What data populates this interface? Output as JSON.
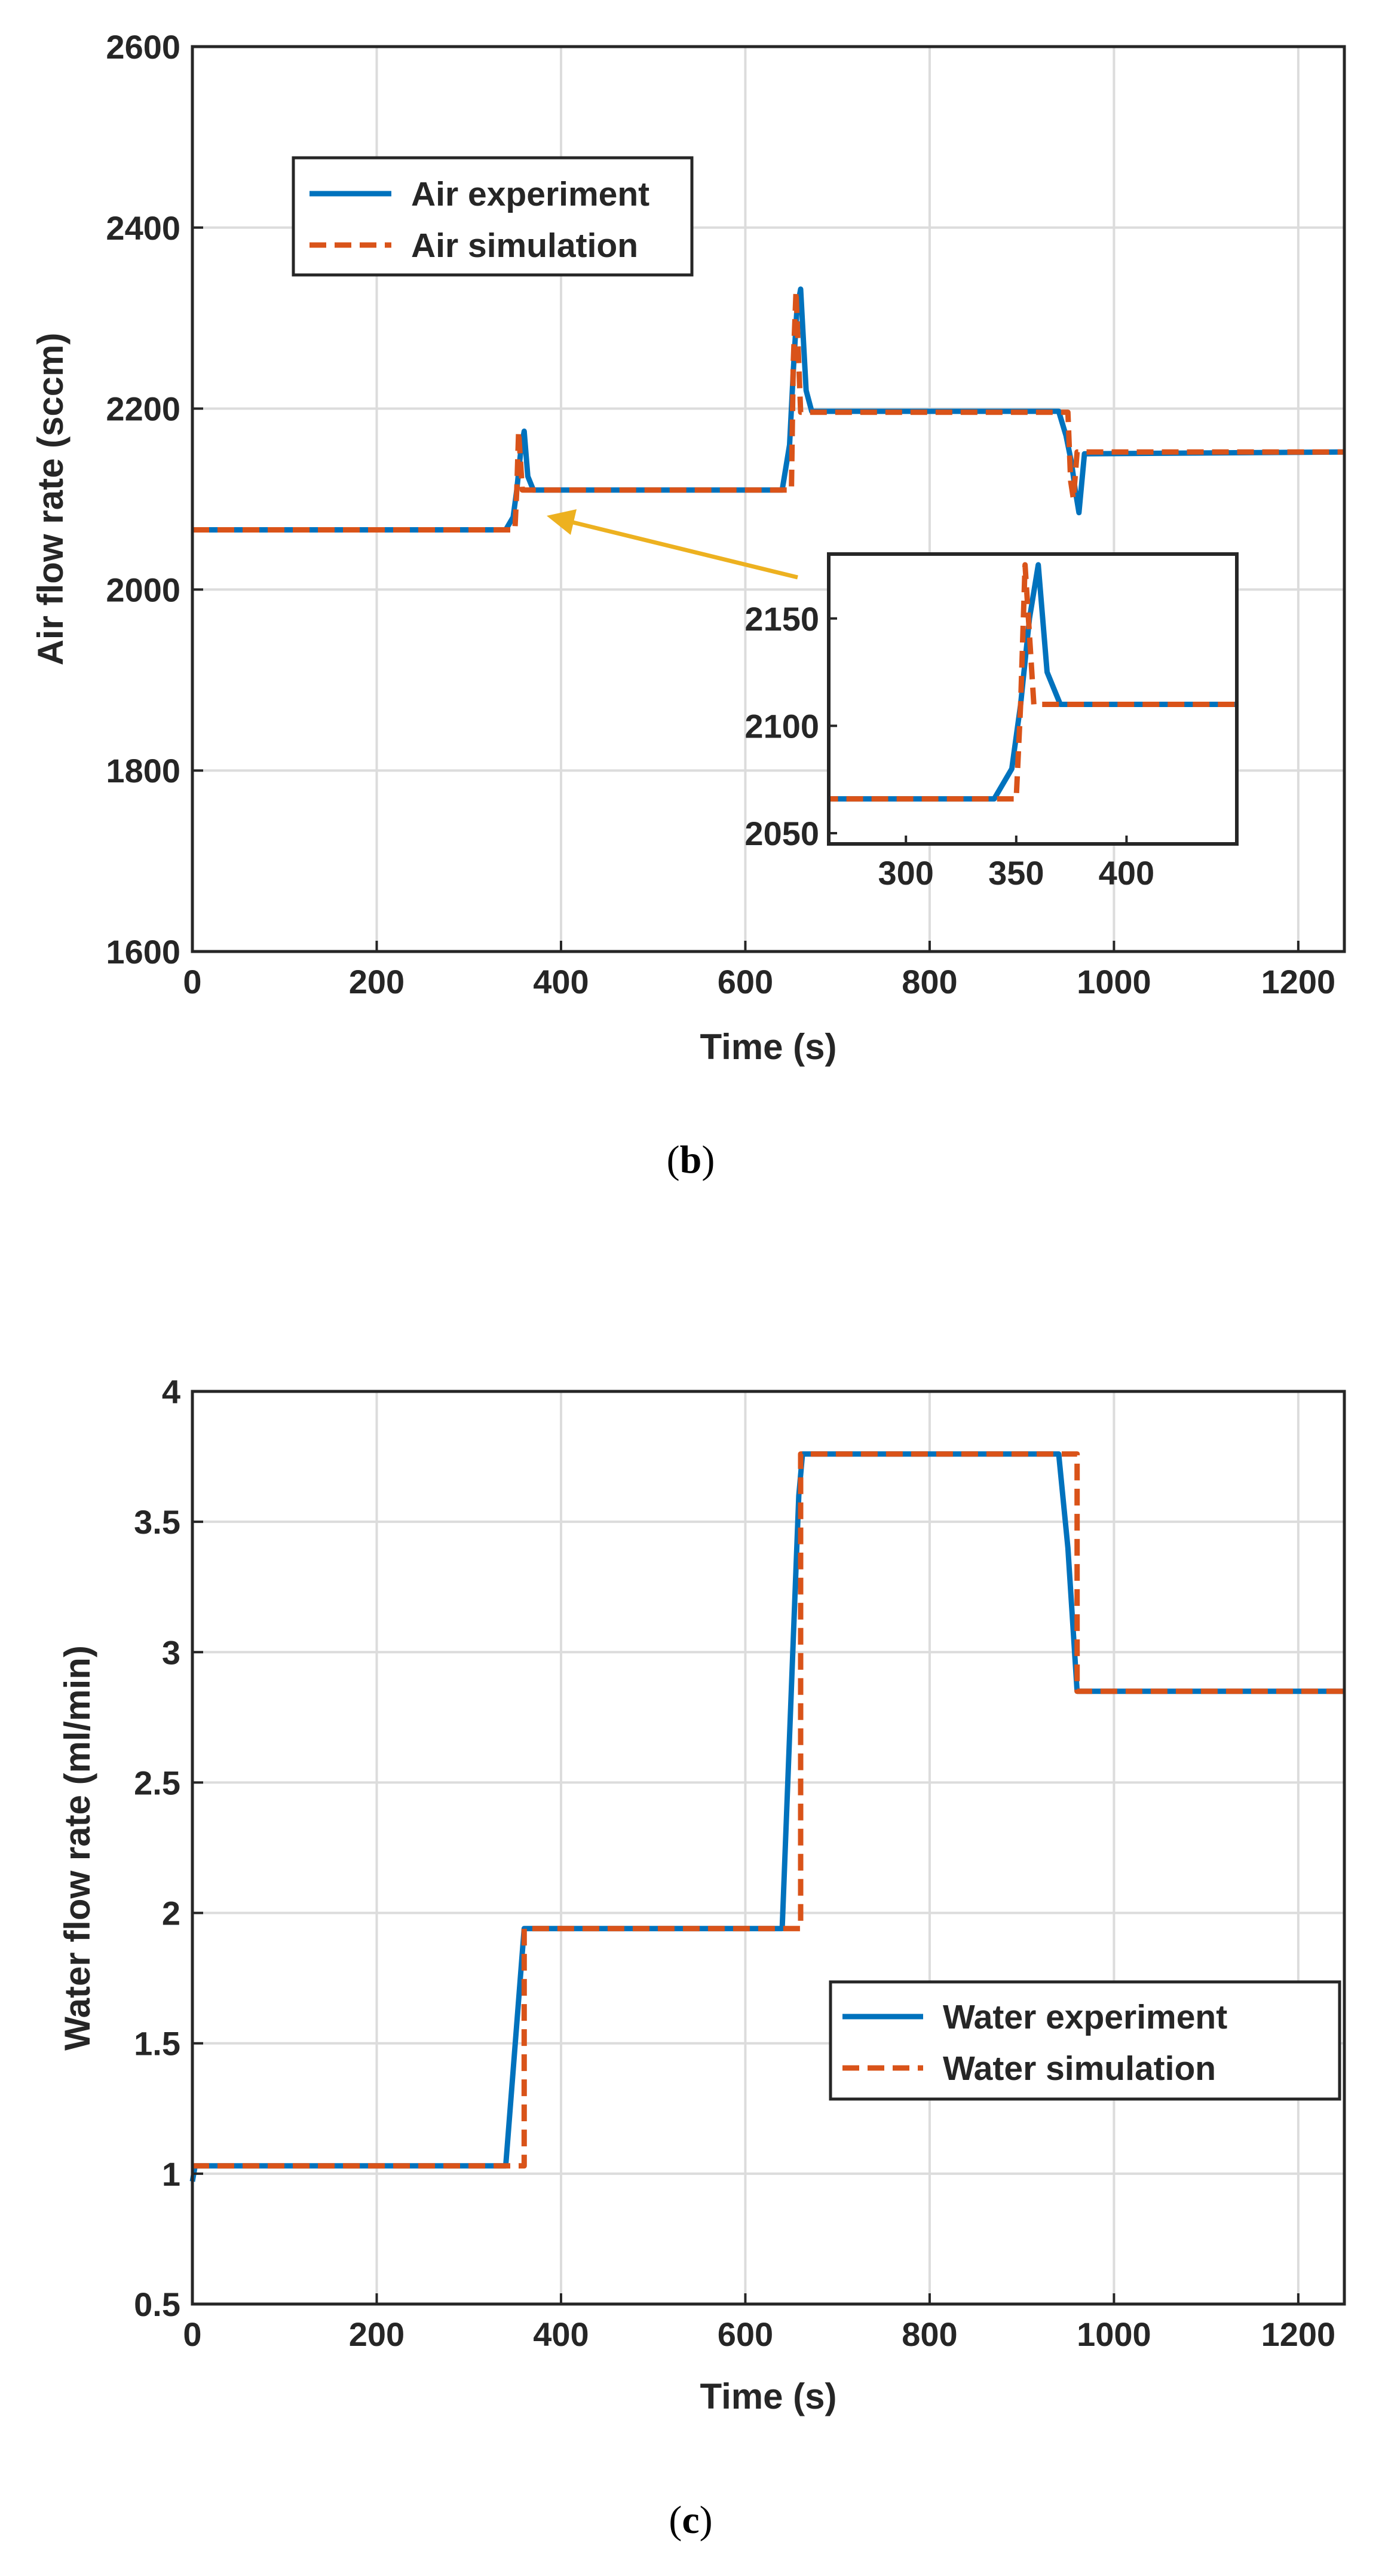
{
  "chart_data": [
    {
      "panel": "b",
      "type": "line",
      "caption": {
        "open": "(",
        "letter": "b",
        "close": ")"
      },
      "title": "",
      "xlabel": "Time (s)",
      "ylabel": "Air flow rate (sccm)",
      "xlim": [
        0,
        1250
      ],
      "ylim": [
        1600,
        2600
      ],
      "x_ticks": [
        0,
        200,
        400,
        600,
        800,
        1000,
        1200
      ],
      "y_ticks": [
        1600,
        1800,
        2000,
        2200,
        2400,
        2600
      ],
      "grid": true,
      "legend_position": "top-left",
      "series": [
        {
          "name": "Air experiment",
          "color": "#0072BD",
          "style": "solid",
          "points": [
            [
              0,
              2066
            ],
            [
              340,
              2066
            ],
            [
              348,
              2080
            ],
            [
              352,
              2110
            ],
            [
              356,
              2150
            ],
            [
              360,
              2175
            ],
            [
              364,
              2125
            ],
            [
              370,
              2110
            ],
            [
              640,
              2110
            ],
            [
              648,
              2160
            ],
            [
              652,
              2240
            ],
            [
              656,
              2310
            ],
            [
              660,
              2332
            ],
            [
              666,
              2220
            ],
            [
              672,
              2197
            ],
            [
              940,
              2197
            ],
            [
              948,
              2170
            ],
            [
              954,
              2140
            ],
            [
              958,
              2110
            ],
            [
              962,
              2085
            ],
            [
              968,
              2150
            ],
            [
              1250,
              2152
            ]
          ]
        },
        {
          "name": "Air simulation",
          "color": "#D95319",
          "style": "dashed",
          "points": [
            [
              0,
              2066
            ],
            [
              350,
              2066
            ],
            [
              352,
              2110
            ],
            [
              354,
              2175
            ],
            [
              358,
              2110
            ],
            [
              650,
              2110
            ],
            [
              652,
              2250
            ],
            [
              655,
              2330
            ],
            [
              660,
              2196
            ],
            [
              950,
              2196
            ],
            [
              953,
              2120
            ],
            [
              956,
              2100
            ],
            [
              960,
              2152
            ],
            [
              1250,
              2152
            ]
          ]
        }
      ],
      "inset": {
        "xlim": [
          265,
          450
        ],
        "ylim": [
          2045,
          2180
        ],
        "x_ticks": [
          300,
          350,
          400
        ],
        "y_ticks": [
          2050,
          2100,
          2150
        ],
        "pointer": "yellow arrow from inset to the step near t = 360 s",
        "pointer_color": "#EDB120"
      }
    },
    {
      "panel": "c",
      "type": "line",
      "caption": {
        "open": "(",
        "letter": "c",
        "close": ")"
      },
      "title": "",
      "xlabel": "Time (s)",
      "ylabel": "Water flow rate (ml/min)",
      "xlim": [
        0,
        1250
      ],
      "ylim": [
        0.5,
        4
      ],
      "x_ticks": [
        0,
        200,
        400,
        600,
        800,
        1000,
        1200
      ],
      "y_ticks": [
        0.5,
        1,
        1.5,
        2,
        2.5,
        3,
        3.5,
        4
      ],
      "grid": true,
      "legend_position": "right",
      "series": [
        {
          "name": "Water experiment",
          "color": "#0072BD",
          "style": "solid",
          "points": [
            [
              0,
              0.97
            ],
            [
              3,
              1.03
            ],
            [
              340,
              1.03
            ],
            [
              360,
              1.94
            ],
            [
              640,
              1.94
            ],
            [
              658,
              3.6
            ],
            [
              662,
              3.76
            ],
            [
              940,
              3.76
            ],
            [
              950,
              3.4
            ],
            [
              960,
              2.85
            ],
            [
              1250,
              2.85
            ]
          ]
        },
        {
          "name": "Water simulation",
          "color": "#D95319",
          "style": "dashed",
          "points": [
            [
              0,
              1.03
            ],
            [
              360,
              1.03
            ],
            [
              360,
              1.94
            ],
            [
              660,
              1.94
            ],
            [
              660,
              3.76
            ],
            [
              960,
              3.76
            ],
            [
              960,
              2.85
            ],
            [
              1250,
              2.85
            ]
          ]
        }
      ]
    }
  ]
}
